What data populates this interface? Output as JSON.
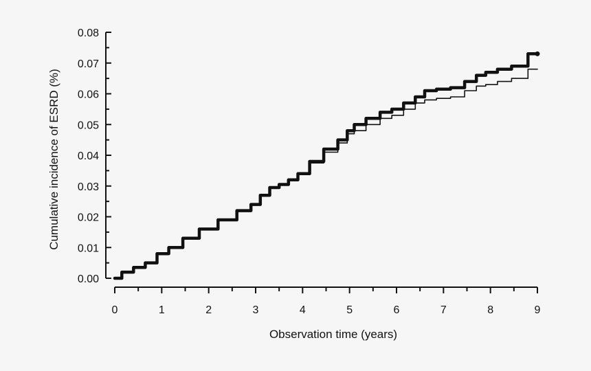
{
  "chart_data": {
    "type": "line",
    "title": "",
    "xlabel": "Observation time (years)",
    "ylabel": "Cumulative incidence of ESRD (%)",
    "xlim": [
      0,
      9
    ],
    "ylim": [
      0,
      0.08
    ],
    "xticks": [
      "0",
      "1",
      "2",
      "3",
      "4",
      "5",
      "6",
      "7",
      "8",
      "9"
    ],
    "yticks": [
      "0.00",
      "0.01",
      "0.02",
      "0.03",
      "0.04",
      "0.05",
      "0.06",
      "0.07",
      "0.08"
    ],
    "grid": false,
    "legend": "none",
    "colors": {
      "background": "#f6f6f6",
      "line": "#111111"
    },
    "series": [
      {
        "style": "thick",
        "x": [
          0,
          0.3,
          0.5,
          0.8,
          1.0,
          1.3,
          1.6,
          2.0,
          2.4,
          2.8,
          3.0,
          3.2,
          3.4,
          3.6,
          3.8,
          4.0,
          4.3,
          4.6,
          4.9,
          5.0,
          5.2,
          5.5,
          5.8,
          6.0,
          6.3,
          6.5,
          6.7,
          7.0,
          7.3,
          7.6,
          7.8,
          8.0,
          8.3,
          8.6,
          9.0
        ],
        "y": [
          0,
          0.002,
          0.0035,
          0.005,
          0.008,
          0.01,
          0.013,
          0.016,
          0.019,
          0.022,
          0.024,
          0.027,
          0.0295,
          0.0305,
          0.032,
          0.034,
          0.038,
          0.042,
          0.045,
          0.048,
          0.05,
          0.052,
          0.054,
          0.055,
          0.057,
          0.059,
          0.061,
          0.0615,
          0.062,
          0.064,
          0.066,
          0.067,
          0.068,
          0.069,
          0.073
        ]
      },
      {
        "style": "thin",
        "x": [
          0,
          0.3,
          0.5,
          0.8,
          1.0,
          1.3,
          1.6,
          2.0,
          2.4,
          2.8,
          3.0,
          3.2,
          3.4,
          3.6,
          3.8,
          4.0,
          4.3,
          4.6,
          4.9,
          5.0,
          5.2,
          5.5,
          5.8,
          6.0,
          6.3,
          6.5,
          6.7,
          7.0,
          7.3,
          7.6,
          7.8,
          8.0,
          8.3,
          8.6,
          9.0
        ],
        "y": [
          0,
          0.002,
          0.0035,
          0.005,
          0.008,
          0.01,
          0.013,
          0.016,
          0.019,
          0.022,
          0.024,
          0.027,
          0.0295,
          0.0305,
          0.032,
          0.034,
          0.0375,
          0.041,
          0.044,
          0.047,
          0.048,
          0.05,
          0.052,
          0.053,
          0.055,
          0.057,
          0.058,
          0.0585,
          0.059,
          0.061,
          0.0625,
          0.063,
          0.064,
          0.065,
          0.068
        ]
      }
    ]
  }
}
